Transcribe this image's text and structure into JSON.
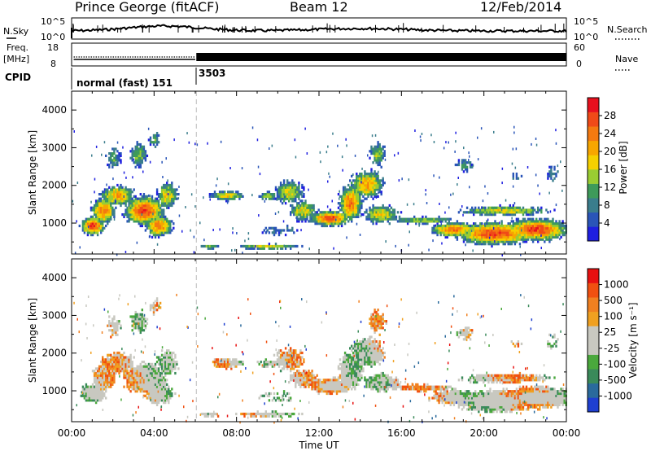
{
  "header": {
    "station": "Prince George (fitACF)",
    "beam": "Beam 12",
    "date": "12/Feb/2014"
  },
  "noise_panel": {
    "left_label": "N.Sky",
    "right_label": "N.Search",
    "left_ticks": [
      "10^5",
      "10^0"
    ],
    "right_ticks": [
      "10^5",
      "10^0"
    ]
  },
  "freq_panel": {
    "left_label_1": "Freq.",
    "left_label_2": "[MHz]",
    "right_label": "Nave",
    "left_ticks": [
      "18",
      "8"
    ],
    "right_ticks": [
      "60",
      "0"
    ]
  },
  "cpid_panel": {
    "label": "CPID",
    "mode_1": "normal (fast) 151",
    "mode_2": "3503"
  },
  "time_axis": {
    "label": "Time UT",
    "ticks": [
      "00:00",
      "04:00",
      "08:00",
      "12:00",
      "16:00",
      "20:00",
      "00:00"
    ]
  },
  "chart_data": [
    {
      "type": "heatmap",
      "name": "power",
      "ylabel": "Slant Range [km]",
      "yticks": [
        "1000",
        "2000",
        "3000",
        "4000"
      ],
      "ylim": [
        180,
        4500
      ],
      "xlim_hours": [
        0,
        24
      ],
      "colorbar": {
        "title": "Power [dB]",
        "ticks": [
          "4",
          "8",
          "12",
          "16",
          "20",
          "24",
          "28"
        ],
        "colors": [
          "#1f1fe0",
          "#2a55b8",
          "#3a7d8c",
          "#3e9a5a",
          "#9acd32",
          "#f5d000",
          "#f7a600",
          "#f47a10",
          "#f04a18",
          "#e8101e"
        ]
      }
    },
    {
      "type": "heatmap",
      "name": "velocity",
      "ylabel": "Slant Range [km]",
      "yticks": [
        "1000",
        "2000",
        "3000",
        "4000"
      ],
      "ylim": [
        180,
        4500
      ],
      "xlim_hours": [
        0,
        24
      ],
      "colorbar": {
        "title": "Velocity [m s⁻¹]",
        "ticks": [
          "1000",
          "500",
          "100",
          "25",
          "-25",
          "-100",
          "-500",
          "-1000"
        ],
        "colors": [
          "#1f3fd0",
          "#2a6a9c",
          "#3a8a5a",
          "#4aa83c",
          "#c8c8c0",
          "#c8c8c0",
          "#f0a020",
          "#f08020",
          "#f05010",
          "#e81010"
        ]
      }
    }
  ]
}
